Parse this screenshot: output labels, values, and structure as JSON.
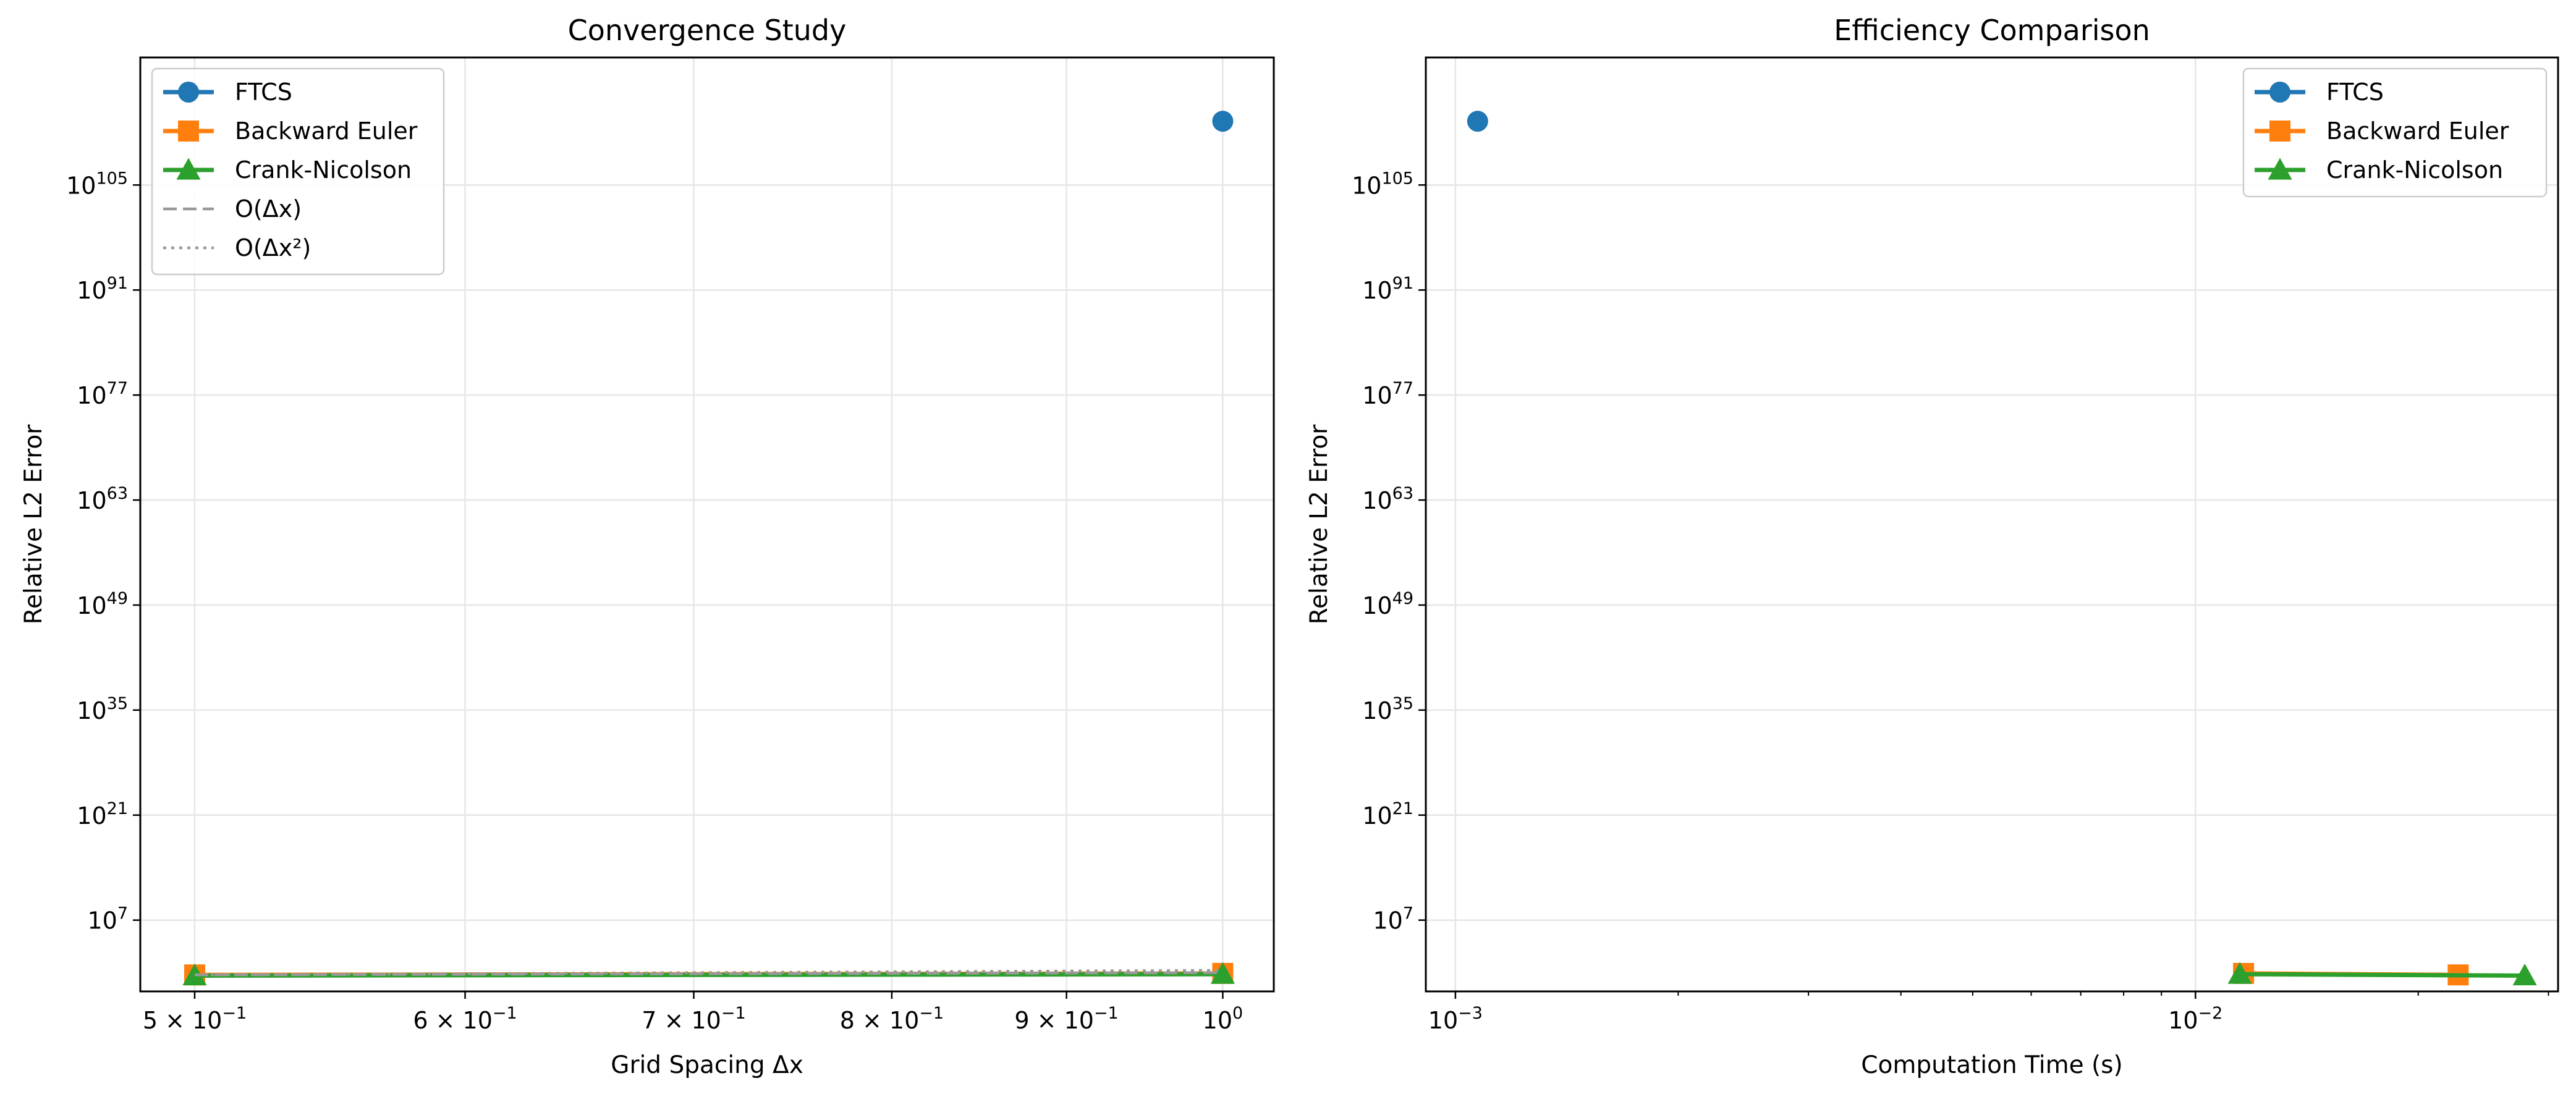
{
  "chart_data": [
    {
      "type": "line",
      "title": "Convergence Study",
      "xlabel": "Grid Spacing Δx",
      "ylabel": "Relative L2 Error",
      "xscale": "log",
      "yscale": "log",
      "xlim": [
        0.482,
        1.035
      ],
      "ylim_log10": [
        -2.5,
        122
      ],
      "x_ticks": [
        {
          "value": 0.5,
          "label": "5 × 10",
          "exp": "−1"
        },
        {
          "value": 0.6,
          "label": "6 × 10",
          "exp": "−1"
        },
        {
          "value": 0.7,
          "label": "7 × 10",
          "exp": "−1"
        },
        {
          "value": 0.8,
          "label": "8 × 10",
          "exp": "−1"
        },
        {
          "value": 0.9,
          "label": "9 × 10",
          "exp": "−1"
        },
        {
          "value": 1.0,
          "label": "10",
          "exp": "0"
        }
      ],
      "y_ticks": [
        {
          "value_log10": 7,
          "label": "10",
          "exp": "7"
        },
        {
          "value_log10": 21,
          "label": "10",
          "exp": "21"
        },
        {
          "value_log10": 35,
          "label": "10",
          "exp": "35"
        },
        {
          "value_log10": 49,
          "label": "10",
          "exp": "49"
        },
        {
          "value_log10": 63,
          "label": "10",
          "exp": "63"
        },
        {
          "value_log10": 77,
          "label": "10",
          "exp": "77"
        },
        {
          "value_log10": 91,
          "label": "10",
          "exp": "91"
        },
        {
          "value_log10": 105,
          "label": "10",
          "exp": "105"
        }
      ],
      "grid": true,
      "legend": "top-left",
      "series": [
        {
          "name": "FTCS",
          "color": "#1f77b4",
          "marker": "circle",
          "line": "solid",
          "x": [
            1.0
          ],
          "y_log10": [
            113.5
          ]
        },
        {
          "name": "Backward Euler",
          "color": "#ff7f0e",
          "marker": "square",
          "line": "solid",
          "x": [
            0.5,
            1.0
          ],
          "y_log10": [
            -0.3,
            -0.1
          ]
        },
        {
          "name": "Crank-Nicolson",
          "color": "#2ca02c",
          "marker": "triangle",
          "line": "solid",
          "x": [
            0.5,
            1.0
          ],
          "y_log10": [
            -0.4,
            -0.2
          ]
        },
        {
          "name": "O(Δx)",
          "color": "#999999",
          "marker": "none",
          "line": "dashed",
          "x": [
            0.5,
            1.0
          ],
          "y_log10": [
            -0.3,
            0.0
          ]
        },
        {
          "name": "O(Δx²)",
          "color": "#999999",
          "marker": "none",
          "line": "dotted",
          "x": [
            0.5,
            1.0
          ],
          "y_log10": [
            -0.3,
            0.3
          ]
        }
      ]
    },
    {
      "type": "line",
      "title": "Efficiency Comparison",
      "xlabel": "Computation Time (s)",
      "ylabel": "Relative L2 Error",
      "xscale": "log",
      "yscale": "log",
      "xlim_log10": [
        -3.04,
        -1.51
      ],
      "ylim_log10": [
        -2.5,
        122
      ],
      "x_ticks": [
        {
          "value_log10": -3,
          "label": "10",
          "exp": "−3"
        },
        {
          "value_log10": -2,
          "label": "10",
          "exp": "−2"
        }
      ],
      "x_minor_ticks_log10": [
        -2.699,
        -2.523,
        -2.398,
        -2.301,
        -2.222,
        -2.155,
        -2.097,
        -2.046,
        -1.699,
        -1.523
      ],
      "y_ticks": [
        {
          "value_log10": 7,
          "label": "10",
          "exp": "7"
        },
        {
          "value_log10": 21,
          "label": "10",
          "exp": "21"
        },
        {
          "value_log10": 35,
          "label": "10",
          "exp": "35"
        },
        {
          "value_log10": 49,
          "label": "10",
          "exp": "49"
        },
        {
          "value_log10": 63,
          "label": "10",
          "exp": "63"
        },
        {
          "value_log10": 77,
          "label": "10",
          "exp": "77"
        },
        {
          "value_log10": 91,
          "label": "10",
          "exp": "91"
        },
        {
          "value_log10": 105,
          "label": "10",
          "exp": "105"
        }
      ],
      "grid": true,
      "legend": "top-right",
      "series": [
        {
          "name": "FTCS",
          "color": "#1f77b4",
          "marker": "circle",
          "line": "solid",
          "x_log10": [
            -2.97
          ],
          "y_log10": [
            113.5
          ]
        },
        {
          "name": "Backward Euler",
          "color": "#ff7f0e",
          "marker": "square",
          "line": "solid",
          "x_log10": [
            -1.935,
            -1.645
          ],
          "y_log10": [
            -0.1,
            -0.3
          ]
        },
        {
          "name": "Crank-Nicolson",
          "color": "#2ca02c",
          "marker": "triangle",
          "line": "solid",
          "x_log10": [
            -1.94,
            -1.555
          ],
          "y_log10": [
            -0.2,
            -0.4
          ]
        }
      ]
    }
  ]
}
